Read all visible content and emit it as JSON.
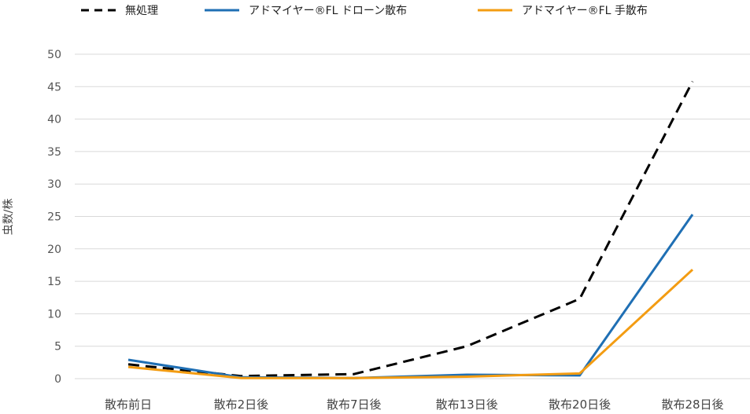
{
  "chart_data": {
    "type": "line",
    "title": "",
    "xlabel": "",
    "ylabel": "虫数/株",
    "ylim": [
      0,
      50
    ],
    "yticks": [
      0,
      5,
      10,
      15,
      20,
      25,
      30,
      35,
      40,
      45,
      50
    ],
    "grid": true,
    "legend_position": "top",
    "categories": [
      "散布前日",
      "散布2日後",
      "散布7日後",
      "散布13日後",
      "散布20日後",
      "散布28日後"
    ],
    "series": [
      {
        "name": "無処理",
        "color": "#000000",
        "dash": "dashed",
        "values": [
          2.2,
          0.4,
          0.7,
          5.0,
          12.3,
          45.8
        ]
      },
      {
        "name": "アドマイヤー®FL ドローン散布",
        "color": "#1f6fb4",
        "dash": "solid",
        "values": [
          2.9,
          0.2,
          0.1,
          0.6,
          0.5,
          25.3
        ]
      },
      {
        "name": "アドマイヤー®FL 手散布",
        "color": "#f39c12",
        "dash": "solid",
        "values": [
          1.8,
          0.1,
          0.1,
          0.3,
          0.8,
          16.8
        ]
      }
    ]
  }
}
